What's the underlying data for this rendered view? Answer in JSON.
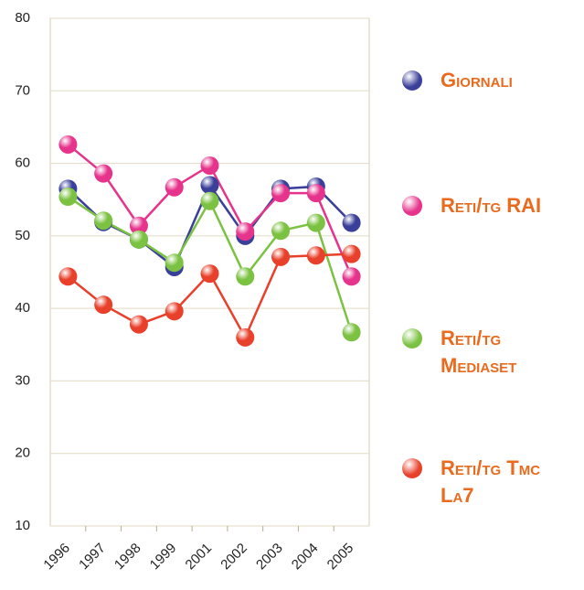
{
  "chart_data": {
    "type": "line",
    "categories": [
      "1996",
      "1997",
      "1998",
      "1999",
      "2001",
      "2002",
      "2003",
      "2004",
      "2005"
    ],
    "series": [
      {
        "name": "Giornali",
        "color": "#3a3f9a",
        "values": [
          56.5,
          51.9,
          49.5,
          45.7,
          57.0,
          50.0,
          56.5,
          56.8,
          51.8
        ]
      },
      {
        "name": "Reti/tg RAI",
        "color": "#e6338c",
        "values": [
          62.6,
          58.6,
          51.4,
          56.7,
          59.7,
          50.6,
          55.9,
          55.9,
          44.4
        ]
      },
      {
        "name": "Reti/tg Mediaset",
        "color": "#7cc242",
        "values": [
          55.4,
          52.1,
          49.5,
          46.3,
          54.8,
          44.4,
          50.7,
          51.8,
          36.7
        ]
      },
      {
        "name": "Reti/tg Tmc La7",
        "color": "#e8402a",
        "values": [
          44.4,
          40.5,
          37.8,
          39.6,
          44.8,
          36.0,
          47.1,
          47.3,
          47.5
        ]
      }
    ],
    "ylim": [
      10,
      80
    ],
    "yticks": [
      10,
      20,
      30,
      40,
      50,
      60,
      70,
      80
    ],
    "grid": true
  }
}
